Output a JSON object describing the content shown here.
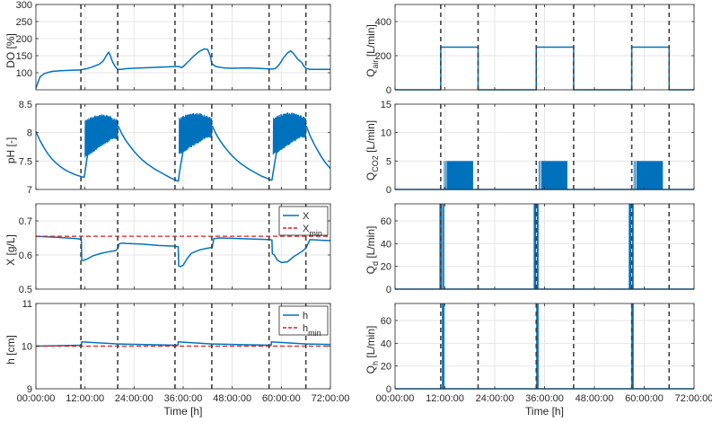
{
  "chart_data": [
    {
      "id": "do",
      "type": "line",
      "ylabel": {
        "main": "DO [%]",
        "sub": ""
      },
      "xlim": [
        0,
        72
      ],
      "ylim": [
        50,
        300
      ],
      "yticks": [
        "100",
        "150",
        "200",
        "250",
        "300"
      ],
      "ytick_values": [
        100,
        150,
        200,
        250,
        300
      ],
      "grid": true,
      "show_xticklabels": false,
      "xlabel": "",
      "series": [
        {
          "color": "#0072bd",
          "style": "solid",
          "x": [
            0,
            1,
            2,
            3,
            4,
            6,
            8,
            10,
            10.8,
            11.5,
            12.5,
            14,
            15.5,
            16.5,
            17.2,
            17.8,
            18.2,
            18.8,
            19.5,
            20,
            21,
            22,
            24,
            28,
            32,
            34,
            35,
            35.6,
            36,
            37,
            38.5,
            40,
            41.2,
            42,
            42.6,
            43,
            44,
            46,
            48,
            52,
            56,
            57.5,
            58.5,
            59.5,
            60.5,
            61.5,
            62.3,
            63,
            64,
            65,
            65.6,
            66,
            67,
            68,
            70,
            72
          ],
          "y": [
            55,
            88,
            97,
            101,
            104,
            106,
            107,
            108,
            108,
            110,
            112,
            118,
            125,
            135,
            150,
            160,
            150,
            130,
            116,
            110,
            110,
            112,
            113,
            115,
            117,
            118,
            118,
            115,
            118,
            130,
            148,
            163,
            170,
            168,
            150,
            127,
            118,
            114,
            113,
            114,
            112,
            111,
            112,
            124,
            143,
            158,
            164,
            156,
            140,
            130,
            118,
            113,
            110,
            110,
            110,
            110
          ]
        }
      ]
    },
    {
      "id": "ph",
      "type": "line",
      "ylabel": {
        "main": "pH [-]",
        "sub": ""
      },
      "xlim": [
        0,
        72
      ],
      "ylim": [
        7,
        8.5
      ],
      "yticks": [
        "7",
        "7.5",
        "8",
        "8.5"
      ],
      "ytick_values": [
        7,
        7.5,
        8,
        8.5
      ],
      "grid": true,
      "show_xticklabels": false,
      "xlabel": "",
      "series": [
        {
          "color": "#0072bd",
          "style": "solid",
          "x": [
            0,
            1,
            2,
            3,
            4,
            5,
            6,
            7,
            8,
            9,
            10,
            11,
            11.8
          ],
          "y": [
            8.02,
            7.86,
            7.73,
            7.62,
            7.53,
            7.46,
            7.4,
            7.35,
            7.31,
            7.28,
            7.25,
            7.23,
            7.21
          ]
        },
        {
          "color": "#0072bd",
          "style": "solid",
          "x": [
            11.8,
            12.1,
            12.5,
            13.1,
            14
          ],
          "y": [
            7.21,
            7.35,
            7.55,
            7.8,
            7.9
          ]
        },
        {
          "color": "#0072bd",
          "style": "solid",
          "x": [
            20.1,
            21,
            22,
            23,
            24,
            25,
            26,
            27,
            28,
            29,
            30,
            31,
            32,
            33,
            34,
            34.8
          ],
          "y": [
            8.12,
            7.98,
            7.86,
            7.76,
            7.67,
            7.59,
            7.52,
            7.46,
            7.41,
            7.36,
            7.32,
            7.28,
            7.24,
            7.2,
            7.17,
            7.14
          ]
        },
        {
          "color": "#0072bd",
          "style": "solid",
          "x": [
            34.8,
            35.1,
            35.6,
            36.3,
            37
          ],
          "y": [
            7.14,
            7.3,
            7.52,
            7.8,
            7.92
          ]
        },
        {
          "color": "#0072bd",
          "style": "solid",
          "x": [
            43.1,
            44,
            45,
            46,
            47,
            48,
            49,
            50,
            51,
            52,
            53,
            54,
            55,
            56,
            57,
            57.7
          ],
          "y": [
            8.12,
            7.98,
            7.86,
            7.76,
            7.67,
            7.59,
            7.52,
            7.46,
            7.41,
            7.36,
            7.32,
            7.28,
            7.24,
            7.21,
            7.18,
            7.16
          ]
        },
        {
          "color": "#0072bd",
          "style": "solid",
          "x": [
            57.7,
            58,
            58.5,
            59.2,
            60
          ],
          "y": [
            7.16,
            7.3,
            7.52,
            7.8,
            7.92
          ]
        },
        {
          "color": "#0072bd",
          "style": "solid",
          "x": [
            66.1,
            67,
            68,
            69,
            70,
            71,
            72
          ],
          "y": [
            8.12,
            7.95,
            7.8,
            7.67,
            7.55,
            7.45,
            7.37
          ]
        }
      ],
      "oscillations": [
        {
          "x0": 12.0,
          "x1": 20.0,
          "lo": [
            7.55,
            7.88
          ],
          "hi": [
            8.1,
            8.3
          ]
        },
        {
          "x0": 35.0,
          "x1": 43.0,
          "lo": [
            7.6,
            7.9
          ],
          "hi": [
            8.15,
            8.33
          ]
        },
        {
          "x0": 58.0,
          "x1": 66.0,
          "lo": [
            7.6,
            7.9
          ],
          "hi": [
            8.15,
            8.33
          ]
        }
      ]
    },
    {
      "id": "x",
      "type": "line",
      "ylabel": {
        "main": "X [g/L]",
        "sub": ""
      },
      "xlim": [
        0,
        72
      ],
      "ylim": [
        0.5,
        0.75
      ],
      "yticks": [
        "0.5",
        "0.6",
        "0.7"
      ],
      "ytick_values": [
        0.5,
        0.6,
        0.7
      ],
      "grid": true,
      "show_xticklabels": false,
      "xlabel": "",
      "legend": {
        "position": "top-right",
        "entries": [
          {
            "label": "X",
            "sub": "",
            "color": "#0072bd",
            "style": "solid"
          },
          {
            "label": "X",
            "sub": "min",
            "color": "#e41a1c",
            "style": "dashed"
          }
        ]
      },
      "series": [
        {
          "color": "#0072bd",
          "style": "solid",
          "x": [
            0,
            5,
            10,
            11.1,
            11.2,
            11.5,
            12.5,
            14,
            16,
            18,
            19.5,
            20.1,
            20.3,
            21,
            22,
            26,
            30,
            34,
            34.8,
            34.9,
            35.3,
            36,
            37,
            38,
            40,
            42,
            43.1,
            43.5,
            45,
            50,
            55,
            57.2,
            57.7,
            57.8,
            58.3,
            59,
            60,
            61.5,
            63,
            65,
            66,
            67,
            70,
            72
          ],
          "y": [
            0.655,
            0.652,
            0.648,
            0.646,
            0.585,
            0.584,
            0.588,
            0.598,
            0.605,
            0.61,
            0.613,
            0.62,
            0.632,
            0.635,
            0.634,
            0.632,
            0.628,
            0.626,
            0.624,
            0.568,
            0.566,
            0.57,
            0.59,
            0.605,
            0.615,
            0.62,
            0.622,
            0.648,
            0.65,
            0.648,
            0.646,
            0.645,
            0.644,
            0.604,
            0.6,
            0.585,
            0.578,
            0.58,
            0.595,
            0.61,
            0.62,
            0.645,
            0.643,
            0.642
          ]
        },
        {
          "color": "#e41a1c",
          "style": "dashed",
          "x": [
            0,
            72
          ],
          "y": [
            0.655,
            0.655
          ]
        }
      ]
    },
    {
      "id": "h",
      "type": "line",
      "ylabel": {
        "main": "h [cm]",
        "sub": ""
      },
      "xlim": [
        0,
        72
      ],
      "ylim": [
        9,
        11
      ],
      "yticks": [
        "9",
        "10",
        "11"
      ],
      "ytick_values": [
        9,
        10,
        11
      ],
      "grid": true,
      "show_xticklabels": true,
      "xlabel": "Time [h]",
      "legend": {
        "position": "top-right",
        "entries": [
          {
            "label": "h",
            "sub": "",
            "color": "#0072bd",
            "style": "solid"
          },
          {
            "label": "h",
            "sub": "min",
            "color": "#e41a1c",
            "style": "dashed"
          }
        ]
      },
      "series": [
        {
          "color": "#0072bd",
          "style": "solid",
          "x": [
            0,
            11.1,
            11.2,
            20,
            20.2,
            34.7,
            34.8,
            43,
            43.2,
            57.5,
            57.6,
            66,
            66.2,
            72
          ],
          "y": [
            10.0,
            10.02,
            10.1,
            10.05,
            10.05,
            10.02,
            10.1,
            10.05,
            10.05,
            10.02,
            10.1,
            10.05,
            10.05,
            10.04
          ]
        },
        {
          "color": "#e41a1c",
          "style": "dashed",
          "x": [
            0,
            72
          ],
          "y": [
            10.0,
            10.0
          ]
        }
      ]
    },
    {
      "id": "qair",
      "type": "line",
      "ylabel": {
        "main": "Q",
        "sub": "air",
        "unit": " [L/min]"
      },
      "xlim": [
        0,
        72
      ],
      "ylim": [
        0,
        500
      ],
      "yticks": [
        "0",
        "200",
        "400"
      ],
      "ytick_values": [
        0,
        200,
        400
      ],
      "grid": true,
      "show_xticklabels": false,
      "xlabel": "",
      "series": [
        {
          "color": "#0072bd",
          "style": "solid",
          "x": [
            0,
            11,
            11,
            20,
            20,
            34,
            34,
            43,
            43,
            57,
            57,
            66,
            66,
            72
          ],
          "y": [
            0,
            0,
            250,
            250,
            0,
            0,
            250,
            250,
            0,
            0,
            250,
            250,
            0,
            0
          ]
        }
      ]
    },
    {
      "id": "qco2",
      "type": "line",
      "ylabel": {
        "main": "Q",
        "sub": "CO2",
        "unit": " [L/min]"
      },
      "xlim": [
        0,
        72
      ],
      "ylim": [
        0,
        15
      ],
      "yticks": [
        "0",
        "5",
        "10",
        "15"
      ],
      "ytick_values": [
        0,
        5,
        10,
        15
      ],
      "grid": true,
      "show_xticklabels": false,
      "xlabel": "",
      "series": [
        {
          "color": "#0072bd",
          "style": "solid",
          "x": [
            0,
            72
          ],
          "y": [
            0,
            0
          ]
        }
      ],
      "blocks": [
        {
          "x0": 12.5,
          "x1": 18.8,
          "y": 5
        },
        {
          "x0": 35.3,
          "x1": 41.5,
          "y": 5
        },
        {
          "x0": 58.2,
          "x1": 64.5,
          "y": 5
        }
      ]
    },
    {
      "id": "qd",
      "type": "line",
      "ylabel": {
        "main": "Q",
        "sub": "d",
        "unit": " [L/min]"
      },
      "xlim": [
        0,
        72
      ],
      "ylim": [
        0,
        75
      ],
      "yticks": [
        "0",
        "20",
        "40",
        "60"
      ],
      "ytick_values": [
        0,
        20,
        40,
        60
      ],
      "grid": true,
      "show_xticklabels": false,
      "xlabel": "",
      "series": [
        {
          "color": "#0072bd",
          "style": "solid",
          "x": [
            0,
            72
          ],
          "y": [
            0,
            0
          ]
        }
      ],
      "spikes": [
        {
          "x": 10.9,
          "y": 75
        },
        {
          "x": 11.05,
          "y": 75
        },
        {
          "x": 11.6,
          "y": 75
        },
        {
          "x": 33.6,
          "y": 75
        },
        {
          "x": 33.75,
          "y": 75
        },
        {
          "x": 34.35,
          "y": 75
        },
        {
          "x": 56.5,
          "y": 75
        },
        {
          "x": 56.65,
          "y": 75
        },
        {
          "x": 57.25,
          "y": 75
        }
      ]
    },
    {
      "id": "qh",
      "type": "line",
      "ylabel": {
        "main": "Q",
        "sub": "h",
        "unit": " [L/min]"
      },
      "xlim": [
        0,
        72
      ],
      "ylim": [
        0,
        75
      ],
      "yticks": [
        "0",
        "20",
        "40",
        "60"
      ],
      "ytick_values": [
        0,
        20,
        40,
        60
      ],
      "grid": true,
      "show_xticklabels": true,
      "xlabel": "Time [h]",
      "series": [
        {
          "color": "#0072bd",
          "style": "solid",
          "x": [
            0,
            72
          ],
          "y": [
            0,
            0
          ]
        }
      ],
      "spikes": [
        {
          "x": 11.5,
          "y": 75
        },
        {
          "x": 11.65,
          "y": 75
        },
        {
          "x": 34.2,
          "y": 75
        },
        {
          "x": 34.35,
          "y": 75
        },
        {
          "x": 57.1,
          "y": 75
        },
        {
          "x": 57.25,
          "y": 75
        }
      ]
    }
  ],
  "phase_lines_x": [
    11,
    20,
    34,
    43,
    57,
    66
  ],
  "xticks": [
    "00:00:00",
    "12:00:00",
    "24:00:00",
    "36:00:00",
    "48:00:00",
    "60:00:00",
    "72:00:00"
  ],
  "xtick_values": [
    0,
    12,
    24,
    36,
    48,
    60,
    72
  ],
  "colors": {
    "series": "#0072bd",
    "limit": "#e41a1c",
    "grid": "#e6e6e6",
    "axis": "#262626",
    "phase": "#404040"
  }
}
